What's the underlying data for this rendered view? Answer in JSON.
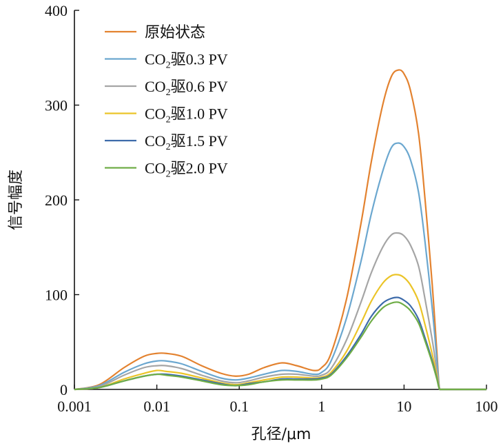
{
  "chart_data": {
    "type": "line",
    "xlabel": "孔径/μm",
    "ylabel": "信号幅度",
    "x_scale": "log",
    "xlim": [
      0.001,
      100
    ],
    "ylim": [
      0,
      400
    ],
    "x_ticks": [
      0.001,
      0.01,
      0.1,
      1,
      10,
      100
    ],
    "x_tick_labels": [
      "0.001",
      "0.01",
      "0.1",
      "1",
      "10",
      "100"
    ],
    "y_ticks": [
      0,
      100,
      200,
      300,
      400
    ],
    "y_tick_labels": [
      "0",
      "100",
      "200",
      "300",
      "400"
    ],
    "grid": false,
    "legend_position": "top-left",
    "x": [
      0.001,
      0.002,
      0.004,
      0.007,
      0.01,
      0.013,
      0.02,
      0.035,
      0.06,
      0.09,
      0.13,
      0.2,
      0.33,
      0.5,
      0.8,
      1.0,
      1.3,
      2.0,
      3.0,
      4.0,
      5.5,
      7.0,
      8.5,
      10.0,
      12.0,
      15.0,
      18.0,
      22.0,
      25.0,
      27.0,
      30.0,
      50.0,
      100.0
    ],
    "series": [
      {
        "name": "原始状态",
        "name_parts": [
          "原始状态"
        ],
        "color": "#E3822F",
        "values": [
          0,
          5,
          23,
          35,
          38,
          38,
          35,
          25,
          17,
          14,
          16,
          23,
          28,
          25,
          20,
          23,
          38,
          95,
          175,
          240,
          300,
          330,
          337,
          333,
          315,
          270,
          200,
          110,
          40,
          0,
          0,
          0,
          0
        ]
      },
      {
        "name": "CO2驱0.3 PV",
        "name_parts": [
          "CO",
          "2",
          "驱0.3 PV"
        ],
        "color": "#6BA7CF",
        "values": [
          0,
          4,
          18,
          27,
          30,
          30,
          27,
          19,
          12,
          10,
          12,
          16,
          20,
          19,
          16,
          18,
          30,
          75,
          135,
          185,
          230,
          255,
          260,
          256,
          242,
          208,
          155,
          85,
          32,
          0,
          0,
          0,
          0
        ]
      },
      {
        "name": "CO2驱0.6 PV",
        "name_parts": [
          "CO",
          "2",
          "驱0.6 PV"
        ],
        "color": "#A5A5A5",
        "values": [
          0,
          3,
          15,
          23,
          25,
          25,
          22,
          15,
          9,
          7,
          9,
          13,
          16,
          16,
          14,
          15,
          22,
          52,
          92,
          123,
          150,
          163,
          165,
          162,
          152,
          130,
          95,
          52,
          20,
          0,
          0,
          0,
          0
        ]
      },
      {
        "name": "CO2驱1.0 PV",
        "name_parts": [
          "CO",
          "2",
          "驱1.0 PV"
        ],
        "color": "#EBC428",
        "values": [
          0,
          2,
          11,
          17,
          20,
          19,
          17,
          12,
          7,
          5,
          7,
          10,
          13,
          13,
          12,
          13,
          18,
          40,
          70,
          93,
          112,
          120,
          121,
          118,
          110,
          93,
          68,
          37,
          15,
          0,
          0,
          0,
          0
        ]
      },
      {
        "name": "CO2驱1.5 PV",
        "name_parts": [
          "CO",
          "2",
          "驱1.5 PV"
        ],
        "color": "#3D6BAA",
        "values": [
          0,
          2,
          9,
          14,
          16,
          16,
          14,
          10,
          6,
          4,
          6,
          8,
          11,
          11,
          11,
          12,
          16,
          35,
          58,
          77,
          91,
          96,
          97,
          94,
          88,
          74,
          54,
          30,
          12,
          0,
          0,
          0,
          0
        ]
      },
      {
        "name": "CO2驱2.0 PV",
        "name_parts": [
          "CO",
          "2",
          "驱2.0 PV"
        ],
        "color": "#6FAD47",
        "values": [
          0,
          2,
          9,
          14,
          16,
          15,
          13,
          9,
          5,
          4,
          5,
          8,
          10,
          10,
          10,
          11,
          15,
          33,
          55,
          72,
          86,
          91,
          92,
          89,
          83,
          70,
          51,
          28,
          11,
          0,
          0,
          0,
          0
        ]
      }
    ]
  }
}
